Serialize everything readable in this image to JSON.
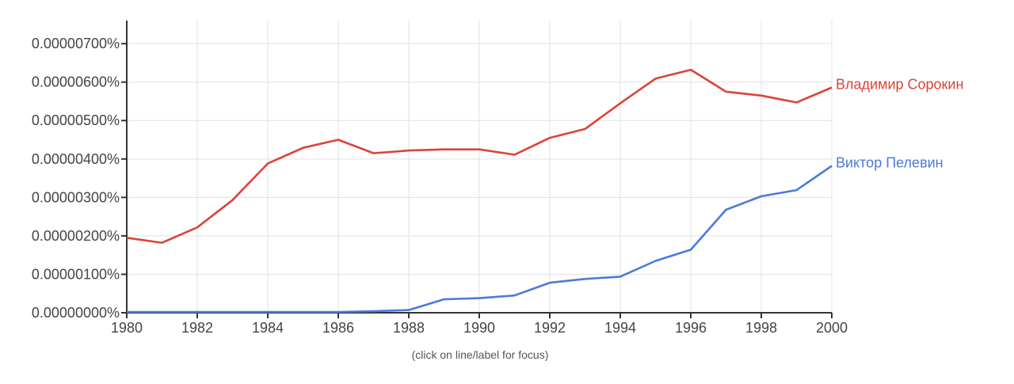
{
  "chart_data": {
    "type": "line",
    "x": [
      1980,
      1981,
      1982,
      1983,
      1984,
      1985,
      1986,
      1987,
      1988,
      1989,
      1990,
      1991,
      1992,
      1993,
      1994,
      1995,
      1996,
      1997,
      1998,
      1999,
      2000
    ],
    "series": [
      {
        "name": "Владимир Сорокин",
        "color": "#db4437",
        "values": [
          1.95e-06,
          1.82e-06,
          2.22e-06,
          2.93e-06,
          3.88e-06,
          4.29e-06,
          4.5e-06,
          4.15e-06,
          4.22e-06,
          4.25e-06,
          4.25e-06,
          4.11e-06,
          4.55e-06,
          4.78e-06,
          5.45e-06,
          6.09e-06,
          6.32e-06,
          5.75e-06,
          5.65e-06,
          5.47e-06,
          5.86e-06
        ]
      },
      {
        "name": "Виктор Пелевин",
        "color": "#4a7bdb",
        "values": [
          2e-08,
          2e-08,
          2e-08,
          2e-08,
          2e-08,
          2e-08,
          2e-08,
          4e-08,
          7e-08,
          3.5e-07,
          3.8e-07,
          4.5e-07,
          7.8e-07,
          8.8e-07,
          9.4e-07,
          1.35e-06,
          1.64e-06,
          2.68e-06,
          3.03e-06,
          3.19e-06,
          3.82e-06
        ]
      }
    ],
    "xlim": [
      1980,
      2000
    ],
    "ylim": [
      0,
      7.6e-06
    ],
    "x_ticks": [
      "1980",
      "1982",
      "1984",
      "1986",
      "1988",
      "1990",
      "1992",
      "1994",
      "1996",
      "1998",
      "2000"
    ],
    "y_ticks": [
      "0.00000000%",
      "0.00000100%",
      "0.00000200%",
      "0.00000300%",
      "0.00000400%",
      "0.00000500%",
      "0.00000600%",
      "0.00000700%"
    ],
    "grid": true,
    "legend": "inline-right"
  },
  "hint": "(click on line/label for focus)"
}
